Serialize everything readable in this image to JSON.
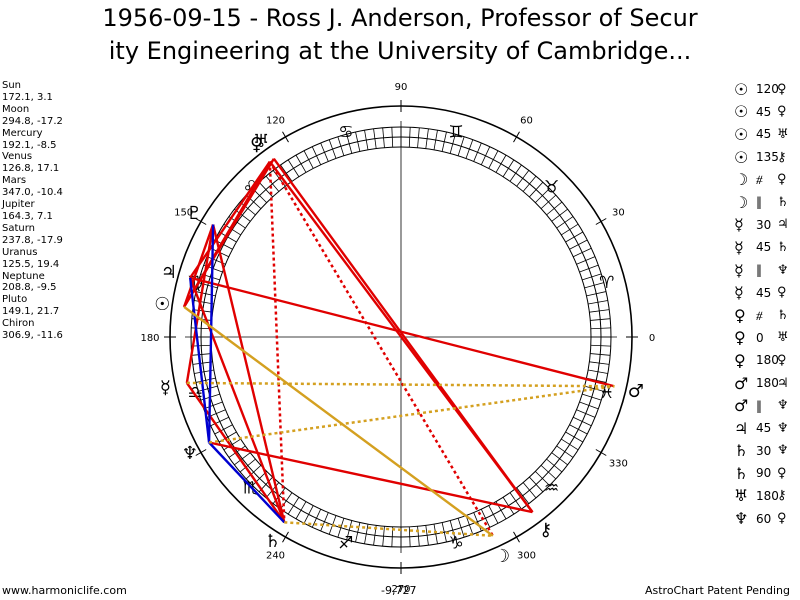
{
  "title": {
    "line1": "1956-09-15 - Ross J. Anderson, Professor of Secur",
    "line2": "ity Engineering at the University of Cambridge..."
  },
  "planets": [
    {
      "name": "Sun",
      "position": "172.1, 3.1",
      "lon": 172.1,
      "glyph": "☉",
      "color": "#000000"
    },
    {
      "name": "Moon",
      "position": "294.8, -17.2",
      "lon": 294.8,
      "glyph": "☽",
      "color": "#000000"
    },
    {
      "name": "Mercury",
      "position": "192.1, -8.5",
      "lon": 192.1,
      "glyph": "☿",
      "color": "#000000"
    },
    {
      "name": "Venus",
      "position": "126.8, 17.1",
      "lon": 126.8,
      "glyph": "♀",
      "color": "#000000"
    },
    {
      "name": "Mars",
      "position": "347.0, -10.4",
      "lon": 347.0,
      "glyph": "♂",
      "color": "#000000"
    },
    {
      "name": "Jupiter",
      "position": "164.3, 7.1",
      "lon": 164.3,
      "glyph": "♃",
      "color": "#000000"
    },
    {
      "name": "Saturn",
      "position": "237.8, -17.9",
      "lon": 237.8,
      "glyph": "♄",
      "color": "#000000"
    },
    {
      "name": "Uranus",
      "position": "125.5, 19.4",
      "lon": 125.5,
      "glyph": "♅",
      "color": "#000000"
    },
    {
      "name": "Neptune",
      "position": "208.8, -9.5",
      "lon": 208.8,
      "glyph": "♆",
      "color": "#000000"
    },
    {
      "name": "Pluto",
      "position": "149.1, 21.7",
      "lon": 149.1,
      "glyph": "♇",
      "color": "#000000"
    },
    {
      "name": "Chiron",
      "position": "306.9, -11.6",
      "lon": 306.9,
      "glyph": "⚷",
      "color": "#000000"
    }
  ],
  "aspects": [
    {
      "g1": "☉",
      "kind": "120",
      "g2": "♀"
    },
    {
      "g1": "☉",
      "kind": "45",
      "g2": "♀"
    },
    {
      "g1": "☉",
      "kind": "45",
      "g2": "♅"
    },
    {
      "g1": "☉",
      "kind": "135",
      "g2": "⚷"
    },
    {
      "g1": "☽",
      "kind": "⧣",
      "g2": "♀"
    },
    {
      "g1": "☽",
      "kind": "‖",
      "g2": "♄"
    },
    {
      "g1": "☿",
      "kind": "30",
      "g2": "♃"
    },
    {
      "g1": "☿",
      "kind": "45",
      "g2": "♄"
    },
    {
      "g1": "☿",
      "kind": "‖",
      "g2": "♆"
    },
    {
      "g1": "☿",
      "kind": "45",
      "g2": "♀"
    },
    {
      "g1": "♀",
      "kind": "⧣",
      "g2": "♄"
    },
    {
      "g1": "♀",
      "kind": "0",
      "g2": "♅"
    },
    {
      "g1": "♀",
      "kind": "180",
      "g2": "♀"
    },
    {
      "g1": "♂",
      "kind": "180",
      "g2": "♃"
    },
    {
      "g1": "♂",
      "kind": "‖",
      "g2": "♆"
    },
    {
      "g1": "♃",
      "kind": "45",
      "g2": "♆"
    },
    {
      "g1": "♄",
      "kind": "30",
      "g2": "♆"
    },
    {
      "g1": "♄",
      "kind": "90",
      "g2": "♀"
    },
    {
      "g1": "♅",
      "kind": "180",
      "g2": "⚷"
    },
    {
      "g1": "♆",
      "kind": "60",
      "g2": "♀"
    }
  ],
  "wheel": {
    "degree_labels": [
      {
        "text": "90",
        "deg": 90
      },
      {
        "text": "60",
        "deg": 60
      },
      {
        "text": "30",
        "deg": 30
      },
      {
        "text": "0",
        "deg": 0
      },
      {
        "text": "330",
        "deg": 330
      },
      {
        "text": "300",
        "deg": 300
      },
      {
        "text": "270",
        "deg": 270
      },
      {
        "text": "240",
        "deg": 240
      },
      {
        "text": "180",
        "deg": 180
      },
      {
        "text": "150",
        "deg": 150
      },
      {
        "text": "120",
        "deg": 120
      }
    ],
    "signs": [
      {
        "glyph": "♈",
        "deg": 15
      },
      {
        "glyph": "♉",
        "deg": 45
      },
      {
        "glyph": "♊",
        "deg": 75
      },
      {
        "glyph": "♋",
        "deg": 105
      },
      {
        "glyph": "♌",
        "deg": 135
      },
      {
        "glyph": "♍",
        "deg": 165
      },
      {
        "glyph": "♎",
        "deg": 195
      },
      {
        "glyph": "♏",
        "deg": 225
      },
      {
        "glyph": "♐",
        "deg": 255
      },
      {
        "glyph": "♑",
        "deg": 285
      },
      {
        "glyph": "♒",
        "deg": 315
      },
      {
        "glyph": "♓",
        "deg": 345
      }
    ],
    "aspect_lines": [
      {
        "a": 126.8,
        "b": 164.3,
        "color": "#e00000",
        "dash": false
      },
      {
        "a": 126.8,
        "b": 172.1,
        "color": "#e00000",
        "dash": false
      },
      {
        "a": 126.8,
        "b": 237.8,
        "color": "#e00000",
        "dash": true
      },
      {
        "a": 126.8,
        "b": 294.8,
        "color": "#e00000",
        "dash": true
      },
      {
        "a": 126.8,
        "b": 306.9,
        "color": "#e00000",
        "dash": false
      },
      {
        "a": 125.5,
        "b": 306.9,
        "color": "#e00000",
        "dash": false
      },
      {
        "a": 347.0,
        "b": 164.3,
        "color": "#e00000",
        "dash": false
      },
      {
        "a": 172.1,
        "b": 149.1,
        "color": "#e00000",
        "dash": false
      },
      {
        "a": 192.1,
        "b": 149.1,
        "color": "#e00000",
        "dash": false
      },
      {
        "a": 172.1,
        "b": 125.5,
        "color": "#e00000",
        "dash": false
      },
      {
        "a": 192.1,
        "b": 237.8,
        "color": "#e00000",
        "dash": false
      },
      {
        "a": 208.8,
        "b": 306.9,
        "color": "#e00000",
        "dash": false
      },
      {
        "a": 237.8,
        "b": 149.1,
        "color": "#e00000",
        "dash": false
      },
      {
        "a": 164.3,
        "b": 237.8,
        "color": "#e00000",
        "dash": false
      },
      {
        "a": 149.1,
        "b": 208.8,
        "color": "#0000d0",
        "dash": false
      },
      {
        "a": 237.8,
        "b": 208.8,
        "color": "#0000d0",
        "dash": false
      },
      {
        "a": 164.3,
        "b": 208.8,
        "color": "#0000d0",
        "dash": false
      },
      {
        "a": 172.1,
        "b": 294.8,
        "color": "#d4a020",
        "dash": false
      },
      {
        "a": 237.8,
        "b": 294.8,
        "color": "#d4a020",
        "dash": true
      },
      {
        "a": 208.8,
        "b": 347.0,
        "color": "#d4a020",
        "dash": true
      },
      {
        "a": 192.1,
        "b": 347.0,
        "color": "#d4a020",
        "dash": true
      }
    ]
  },
  "footer": {
    "left": "www.harmoniclife.com",
    "center": "-9,727",
    "right": "AstroChart Patent Pending"
  }
}
